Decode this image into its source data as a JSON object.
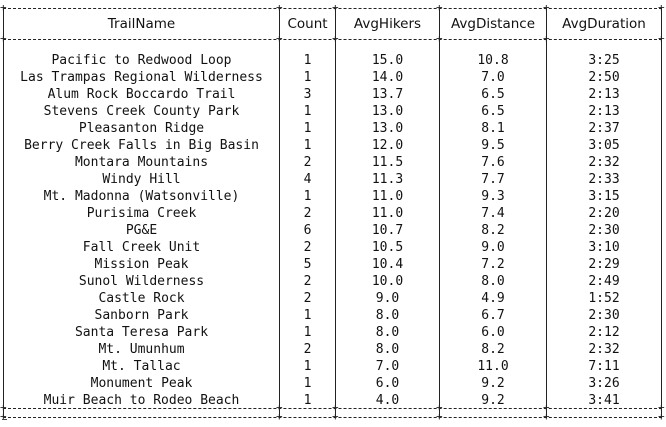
{
  "table": {
    "columns": [
      "TrailName",
      "Count",
      "AvgHikers",
      "AvgDistance",
      "AvgDuration"
    ],
    "rows": [
      [
        "Pacific to Redwood Loop",
        "1",
        "15.0",
        "10.8",
        "3:25"
      ],
      [
        "Las Trampas Regional Wilderness",
        "1",
        "14.0",
        "7.0",
        "2:50"
      ],
      [
        "Alum Rock Boccardo Trail",
        "3",
        "13.7",
        "6.5",
        "2:13"
      ],
      [
        "Stevens Creek County Park",
        "1",
        "13.0",
        "6.5",
        "2:13"
      ],
      [
        "Pleasanton Ridge",
        "1",
        "13.0",
        "8.1",
        "2:37"
      ],
      [
        "Berry Creek Falls in Big Basin",
        "1",
        "12.0",
        "9.5",
        "3:05"
      ],
      [
        "Montara Mountains",
        "2",
        "11.5",
        "7.6",
        "2:32"
      ],
      [
        "Windy Hill",
        "4",
        "11.3",
        "7.7",
        "2:33"
      ],
      [
        "Mt. Madonna (Watsonville)",
        "1",
        "11.0",
        "9.3",
        "3:15"
      ],
      [
        "Purisima Creek",
        "2",
        "11.0",
        "7.4",
        "2:20"
      ],
      [
        "PG&E",
        "6",
        "10.7",
        "8.2",
        "2:30"
      ],
      [
        "Fall Creek Unit",
        "2",
        "10.5",
        "9.0",
        "3:10"
      ],
      [
        "Mission Peak",
        "5",
        "10.4",
        "7.2",
        "2:29"
      ],
      [
        "Sunol Wilderness",
        "2",
        "10.0",
        "8.0",
        "2:49"
      ],
      [
        "Castle Rock",
        "2",
        "9.0",
        "4.9",
        "1:52"
      ],
      [
        "Sanborn Park",
        "1",
        "8.0",
        "6.7",
        "2:30"
      ],
      [
        "Santa Teresa Park",
        "1",
        "8.0",
        "6.0",
        "2:12"
      ],
      [
        "Mt. Umunhum",
        "2",
        "8.0",
        "8.2",
        "2:32"
      ],
      [
        "Mt. Tallac",
        "1",
        "7.0",
        "11.0",
        "7:11"
      ],
      [
        "Monument Peak",
        "1",
        "6.0",
        "9.2",
        "3:26"
      ],
      [
        "Muir Beach to Rodeo Beach",
        "1",
        "4.0",
        "9.2",
        "3:41"
      ]
    ]
  }
}
